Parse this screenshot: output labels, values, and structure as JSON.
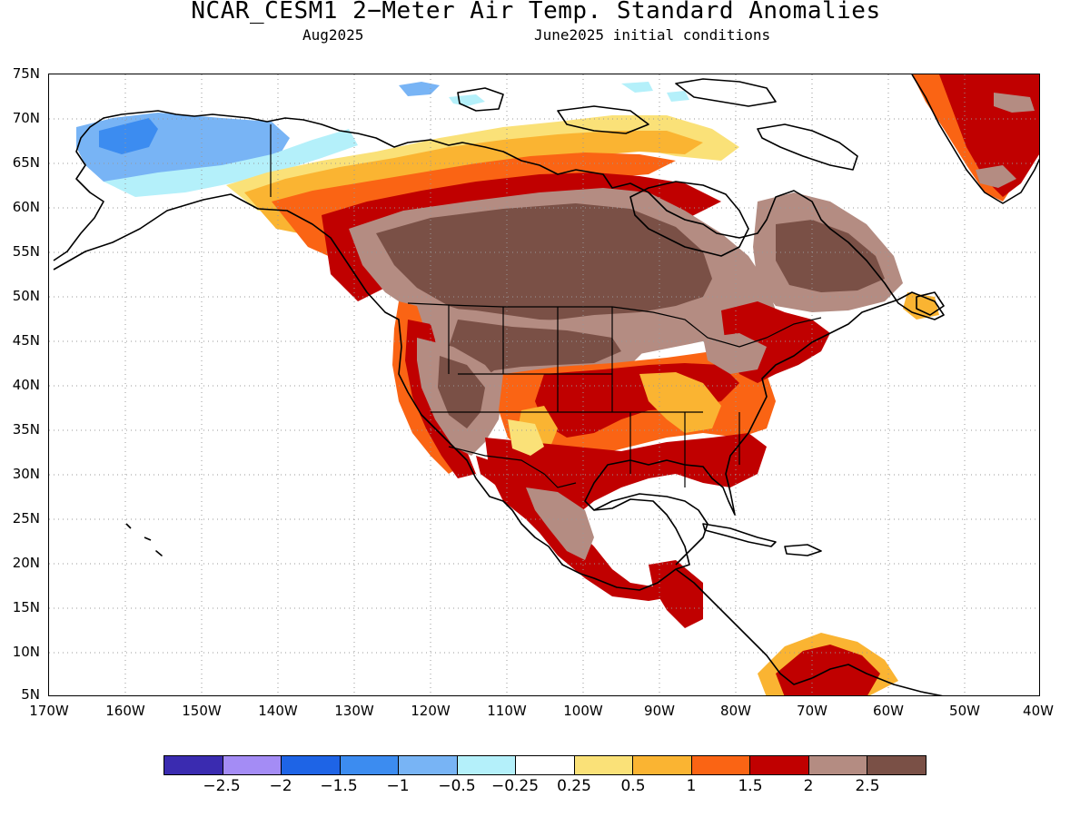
{
  "title": "NCAR_CESM1 2−Meter Air Temp. Standard Anomalies",
  "subtitle_left": "Aug2025",
  "subtitle_right": "June2025 initial conditions",
  "lat_labels": [
    "75N",
    "70N",
    "65N",
    "60N",
    "55N",
    "50N",
    "45N",
    "40N",
    "35N",
    "30N",
    "25N",
    "20N",
    "15N",
    "10N",
    "5N"
  ],
  "lon_labels": [
    "170W",
    "160W",
    "150W",
    "140W",
    "130W",
    "120W",
    "110W",
    "100W",
    "90W",
    "80W",
    "70W",
    "60W",
    "50W",
    "40W"
  ],
  "colorbar": {
    "colors": [
      "#3a2bb0",
      "#a48cf5",
      "#1e64e6",
      "#3c8cf0",
      "#78b4f5",
      "#b4f0fa",
      "#ffffff",
      "#fae178",
      "#fab432",
      "#fa6414",
      "#c00000",
      "#b48c82",
      "#7a5046"
    ],
    "labels": [
      "−2.5",
      "−2",
      "−1.5",
      "−1",
      "−0.5",
      "−0.25",
      "0.25",
      "0.5",
      "1",
      "1.5",
      "2",
      "2.5"
    ]
  },
  "map": {
    "projection": "equirectangular",
    "lon_range": [
      -170,
      -40
    ],
    "lat_range": [
      5,
      75
    ],
    "gridlines": "dotted",
    "anomaly_regions": [
      {
        "region": "alaska-interior",
        "level": "-1"
      },
      {
        "region": "alaska-north-coast",
        "level": "-1.5"
      },
      {
        "region": "alaska-south",
        "level": "-0.25"
      },
      {
        "region": "canadian-arctic-islands-west",
        "level": "-1"
      },
      {
        "region": "yukon-nwt-arc",
        "level": "1.5"
      },
      {
        "region": "central-canada",
        "level": "2.5"
      },
      {
        "region": "northern-great-plains",
        "level": "2.5"
      },
      {
        "region": "eastern-canada",
        "level": "2"
      },
      {
        "region": "great-basin",
        "level": "2.5"
      },
      {
        "region": "central-plains-ohio-valley",
        "level": "1.5"
      },
      {
        "region": "southern-us",
        "level": "2"
      },
      {
        "region": "mexico-interior",
        "level": "2"
      },
      {
        "region": "greenland-east",
        "level": "2"
      },
      {
        "region": "northern-south-america",
        "level": "2"
      }
    ]
  }
}
